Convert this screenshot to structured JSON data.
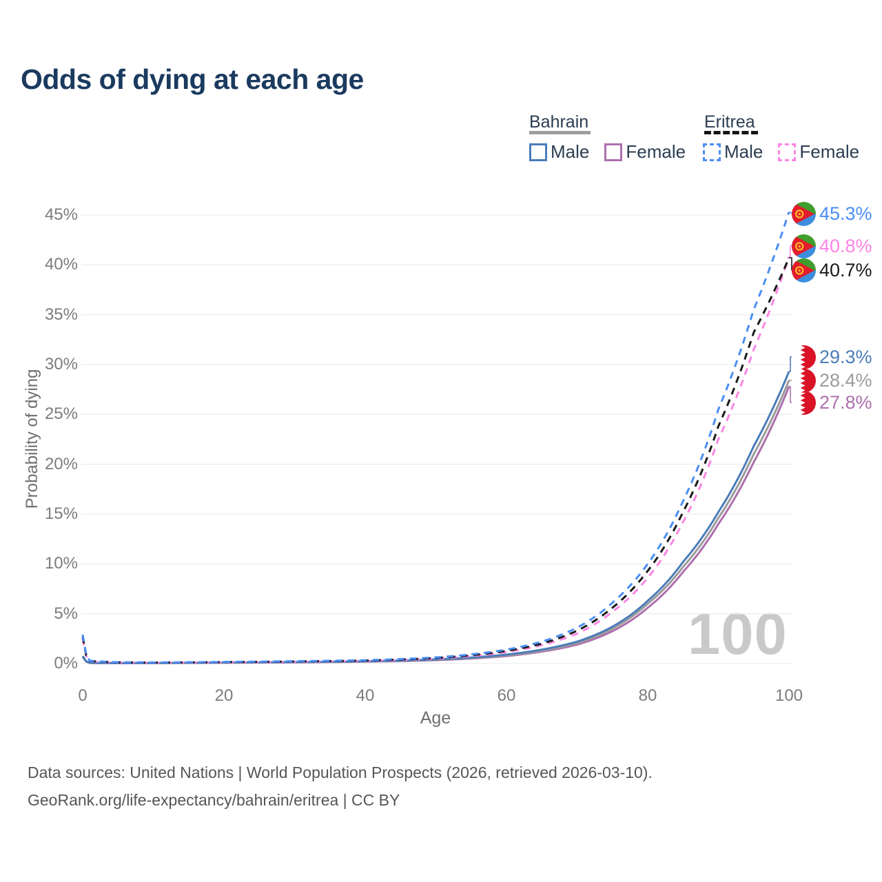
{
  "title": "Odds of dying at each age",
  "legend": {
    "groups": [
      {
        "label": "Bahrain",
        "line_style": "solid",
        "underline_color": "#9e9e9e",
        "items": [
          {
            "label": "Male",
            "color": "#4a7cb8"
          },
          {
            "label": "Female",
            "color": "#ad6fad"
          }
        ]
      },
      {
        "label": "Eritrea",
        "line_style": "dashed",
        "underline_color": "#141414",
        "items": [
          {
            "label": "Male",
            "color": "#4a8ef5"
          },
          {
            "label": "Female",
            "color": "#fc85e4"
          }
        ]
      }
    ]
  },
  "chart_data": {
    "type": "line",
    "title": "Odds of dying at each age",
    "xlabel": "Age",
    "ylabel": "Probability of dying",
    "xlim": [
      0,
      100
    ],
    "ylim": [
      0,
      47
    ],
    "grid": true,
    "watermark": "100",
    "x_tick_labels": [
      "0",
      "20",
      "40",
      "60",
      "80",
      "100"
    ],
    "x_tick_values": [
      0,
      20,
      40,
      60,
      80,
      100
    ],
    "y_tick_labels": [
      "0%",
      "5%",
      "10%",
      "15%",
      "20%",
      "25%",
      "30%",
      "35%",
      "40%",
      "45%"
    ],
    "y_tick_values": [
      0,
      5,
      10,
      15,
      20,
      25,
      30,
      35,
      40,
      45
    ],
    "series": [
      {
        "id": "bahrain-female",
        "name": "Bahrain Female",
        "color": "#ad6fad",
        "dash": false,
        "flag": "bahrain",
        "end_label": "27.8%",
        "points": [
          [
            0,
            0.65
          ],
          [
            1,
            0.06
          ],
          [
            5,
            0.04
          ],
          [
            10,
            0.05
          ],
          [
            15,
            0.06
          ],
          [
            20,
            0.08
          ],
          [
            25,
            0.1
          ],
          [
            30,
            0.12
          ],
          [
            35,
            0.15
          ],
          [
            40,
            0.19
          ],
          [
            45,
            0.25
          ],
          [
            50,
            0.34
          ],
          [
            55,
            0.5
          ],
          [
            60,
            0.75
          ],
          [
            65,
            1.2
          ],
          [
            70,
            1.9
          ],
          [
            75,
            3.25
          ],
          [
            80,
            5.6
          ],
          [
            85,
            9.2
          ],
          [
            90,
            14.0
          ],
          [
            95,
            20.2
          ],
          [
            100,
            27.8
          ]
        ]
      },
      {
        "id": "bahrain",
        "name": "Bahrain",
        "color": "#9b9b9b",
        "dash": false,
        "flag": "bahrain",
        "end_label": "28.4%",
        "points": [
          [
            0,
            0.7
          ],
          [
            1,
            0.065
          ],
          [
            5,
            0.045
          ],
          [
            10,
            0.055
          ],
          [
            15,
            0.07
          ],
          [
            20,
            0.095
          ],
          [
            25,
            0.115
          ],
          [
            30,
            0.14
          ],
          [
            35,
            0.165
          ],
          [
            40,
            0.21
          ],
          [
            45,
            0.28
          ],
          [
            50,
            0.38
          ],
          [
            55,
            0.55
          ],
          [
            60,
            0.82
          ],
          [
            65,
            1.3
          ],
          [
            70,
            2.05
          ],
          [
            75,
            3.5
          ],
          [
            80,
            6.0
          ],
          [
            85,
            9.7
          ],
          [
            90,
            14.6
          ],
          [
            95,
            21.0
          ],
          [
            100,
            28.4
          ]
        ]
      },
      {
        "id": "bahrain-male",
        "name": "Bahrain Male",
        "color": "#4a7cb8",
        "dash": false,
        "flag": "bahrain",
        "end_label": "29.3%",
        "points": [
          [
            0,
            0.75
          ],
          [
            1,
            0.07
          ],
          [
            5,
            0.05
          ],
          [
            10,
            0.06
          ],
          [
            15,
            0.08
          ],
          [
            20,
            0.11
          ],
          [
            25,
            0.13
          ],
          [
            30,
            0.15
          ],
          [
            35,
            0.18
          ],
          [
            40,
            0.23
          ],
          [
            45,
            0.3
          ],
          [
            50,
            0.42
          ],
          [
            55,
            0.6
          ],
          [
            60,
            0.9
          ],
          [
            65,
            1.4
          ],
          [
            70,
            2.2
          ],
          [
            75,
            3.7
          ],
          [
            80,
            6.3
          ],
          [
            85,
            10.2
          ],
          [
            90,
            15.2
          ],
          [
            95,
            21.8
          ],
          [
            100,
            29.3
          ]
        ]
      },
      {
        "id": "eritrea-female",
        "name": "Eritrea Female",
        "color": "#fc85e4",
        "dash": true,
        "flag": "eritrea",
        "end_label": "40.8%",
        "points": [
          [
            0,
            2.5
          ],
          [
            1,
            0.24
          ],
          [
            5,
            0.11
          ],
          [
            10,
            0.09
          ],
          [
            15,
            0.1
          ],
          [
            20,
            0.12
          ],
          [
            25,
            0.15
          ],
          [
            30,
            0.18
          ],
          [
            35,
            0.22
          ],
          [
            40,
            0.27
          ],
          [
            45,
            0.36
          ],
          [
            50,
            0.5
          ],
          [
            55,
            0.75
          ],
          [
            60,
            1.15
          ],
          [
            65,
            1.85
          ],
          [
            70,
            3.0
          ],
          [
            75,
            5.2
          ],
          [
            80,
            8.6
          ],
          [
            85,
            14.2
          ],
          [
            90,
            22.5
          ],
          [
            95,
            31.5
          ],
          [
            100,
            40.8
          ]
        ]
      },
      {
        "id": "eritrea",
        "name": "Eritrea",
        "color": "#1a1a1a",
        "dash": true,
        "flag": "eritrea",
        "end_label": "40.7%",
        "points": [
          [
            0,
            2.7
          ],
          [
            1,
            0.26
          ],
          [
            5,
            0.12
          ],
          [
            10,
            0.1
          ],
          [
            15,
            0.115
          ],
          [
            20,
            0.145
          ],
          [
            25,
            0.175
          ],
          [
            30,
            0.21
          ],
          [
            35,
            0.25
          ],
          [
            40,
            0.3
          ],
          [
            45,
            0.4
          ],
          [
            50,
            0.56
          ],
          [
            55,
            0.83
          ],
          [
            60,
            1.27
          ],
          [
            65,
            2.0
          ],
          [
            70,
            3.3
          ],
          [
            75,
            5.6
          ],
          [
            80,
            9.3
          ],
          [
            85,
            15.2
          ],
          [
            90,
            23.8
          ],
          [
            95,
            33.2
          ],
          [
            100,
            40.7
          ]
        ]
      },
      {
        "id": "eritrea-male",
        "name": "Eritrea Male",
        "color": "#4a8ef5",
        "dash": true,
        "flag": "eritrea",
        "end_label": "45.3%",
        "points": [
          [
            0,
            2.9
          ],
          [
            1,
            0.28
          ],
          [
            5,
            0.13
          ],
          [
            10,
            0.11
          ],
          [
            15,
            0.13
          ],
          [
            20,
            0.17
          ],
          [
            25,
            0.2
          ],
          [
            30,
            0.24
          ],
          [
            35,
            0.28
          ],
          [
            40,
            0.34
          ],
          [
            45,
            0.45
          ],
          [
            50,
            0.62
          ],
          [
            55,
            0.92
          ],
          [
            60,
            1.4
          ],
          [
            65,
            2.2
          ],
          [
            70,
            3.6
          ],
          [
            75,
            6.1
          ],
          [
            80,
            10.0
          ],
          [
            85,
            16.3
          ],
          [
            90,
            25.5
          ],
          [
            95,
            35.5
          ],
          [
            100,
            45.3
          ]
        ]
      }
    ]
  },
  "footer": {
    "line1": "Data sources: United Nations | World Population Prospects (2026, retrieved 2026-03-10).",
    "line2": "GeoRank.org/life-expectancy/bahrain/eritrea | CC BY"
  }
}
